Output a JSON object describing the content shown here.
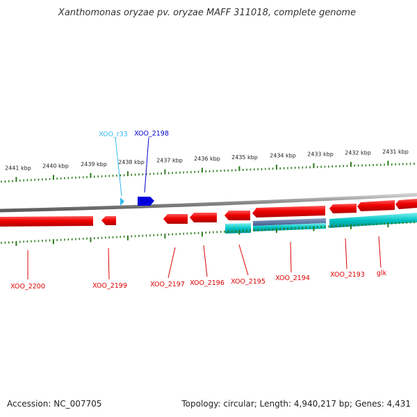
{
  "title": "Xanthomonas oryzae pv. oryzae MAFF 311018, complete genome",
  "footer": {
    "accession": "Accession: NC_007705",
    "summary": "Topology: circular; Length: 4,940,217 bp; Genes: 4,431"
  },
  "colors": {
    "forward_gene": "#ff0000",
    "reverse_gene": "#ee0000",
    "cds": "#00c8c8",
    "cds_alt": "#4a6a9a",
    "rna": "#33bbee",
    "highlight_gene": "#0000dd",
    "tick": "#2a7a1a",
    "backbone": "#888888"
  },
  "scale_labels": [
    "2441 kbp",
    "2440 kbp",
    "2439 kbp",
    "2438 kbp",
    "2437 kbp",
    "2436 kbp",
    "2435 kbp",
    "2434 kbp",
    "2433 kbp",
    "2432 kbp",
    "2431 kbp"
  ],
  "gene_labels": [
    {
      "id": "g-r33",
      "text": "XOO_r33",
      "color": "#33bbee"
    },
    {
      "id": "g-2198",
      "text": "XOO_2198",
      "color": "#0000cc"
    },
    {
      "id": "g-2200",
      "text": "XOO_2200",
      "color": "#dd0000"
    },
    {
      "id": "g-2199",
      "text": "XOO_2199",
      "color": "#dd0000"
    },
    {
      "id": "g-2197",
      "text": "XOO_2197",
      "color": "#dd0000"
    },
    {
      "id": "g-2196",
      "text": "XOO_2196",
      "color": "#dd0000"
    },
    {
      "id": "g-2195",
      "text": "XOO_2195",
      "color": "#dd0000"
    },
    {
      "id": "g-2194",
      "text": "XOO_2194",
      "color": "#dd0000"
    },
    {
      "id": "g-2193",
      "text": "XOO_2193",
      "color": "#dd0000"
    },
    {
      "id": "g-glk",
      "text": "glk",
      "color": "#dd0000"
    }
  ]
}
